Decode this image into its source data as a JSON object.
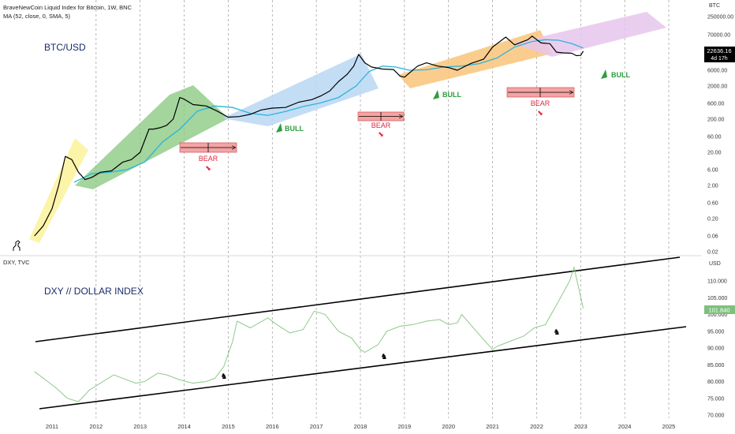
{
  "header": {
    "symbol_line": "BraveNewCoin Liquid Index for Bitcoin, 1W, BNC",
    "ma_line": "MA (52, close, 0, SMA, 5)",
    "dxy_line": "DXY, TVC"
  },
  "top_panel": {
    "title": "BTC/USD",
    "currency": "BTC"
  },
  "bottom_panel": {
    "title": "DXY // DOLLAR INDEX",
    "currency": "USD"
  },
  "price_label": {
    "value": "22636.16",
    "countdown": "4d 17h"
  },
  "dxy_label": {
    "value": "101.840"
  },
  "annotations": {
    "bull": [
      "BULL",
      "BULL",
      "BULL"
    ],
    "bear": [
      "BEAR",
      "BEAR",
      "BEAR"
    ]
  },
  "colors": {
    "price_line": "#000000",
    "ma_line": "#2bb5d8",
    "dxy_line": "#8fc98a",
    "bull_label": "#2e9e3e",
    "bear_label": "#e0283d",
    "bear_box": "#f3a3a3",
    "band_yellow": "#fbf29a",
    "band_green": "#8ccb85",
    "band_blue": "#b8d7f3",
    "band_orange": "#f9c47a",
    "band_purple": "#e6c5ec",
    "price_tag": "#000000",
    "dxy_tag": "#7fc07d"
  },
  "chart_data": [
    {
      "type": "line",
      "scale": "log",
      "title": "BTC/USD",
      "ylabel": "BTC",
      "x_ticks": [
        "2011",
        "2012",
        "2013",
        "2014",
        "2015",
        "2016",
        "2017",
        "2018",
        "2019",
        "2020",
        "2021",
        "2022",
        "2023",
        "2024",
        "2025"
      ],
      "y_ticks": [
        250000,
        70000,
        20000,
        6000,
        2000,
        600,
        200,
        60,
        20,
        6,
        2,
        0.6,
        0.2,
        0.06,
        0.02
      ],
      "y_tick_labels": [
        "250000.00",
        "70000.00",
        "20000.00",
        "6000.00",
        "2000.00",
        "600.00",
        "200.00",
        "60.00",
        "20.00",
        "6.00",
        "2.00",
        "0.60",
        "0.20",
        "0.06",
        "0.02"
      ],
      "series": [
        {
          "x": [
            2010.6,
            2010.8,
            2011.0,
            2011.15,
            2011.3,
            2011.45,
            2011.6,
            2011.75,
            2011.9,
            2012.1,
            2012.35,
            2012.6,
            2012.8,
            2013.0,
            2013.2,
            2013.3,
            2013.45,
            2013.6,
            2013.75,
            2013.9,
            2014.0,
            2014.2,
            2014.5,
            2014.75,
            2015.0,
            2015.25,
            2015.5,
            2015.75,
            2016.0,
            2016.3,
            2016.6,
            2016.9,
            2017.1,
            2017.3,
            2017.5,
            2017.7,
            2017.85,
            2017.96,
            2018.1,
            2018.25,
            2018.5,
            2018.75,
            2018.9,
            2019.0,
            2019.3,
            2019.5,
            2019.75,
            2020.0,
            2020.2,
            2020.5,
            2020.8,
            2021.0,
            2021.3,
            2021.5,
            2021.8,
            2021.9,
            2022.1,
            2022.3,
            2022.45,
            2022.6,
            2022.8,
            2022.9,
            2023.0,
            2023.06
          ],
          "y": [
            0.06,
            0.12,
            0.4,
            2,
            15,
            12,
            5,
            3,
            3.5,
            5,
            5.5,
            10,
            12,
            20,
            100,
            100,
            110,
            130,
            200,
            900,
            800,
            550,
            500,
            350,
            230,
            240,
            280,
            380,
            430,
            450,
            650,
            780,
            1000,
            1400,
            2700,
            4500,
            8000,
            18000,
            10000,
            7500,
            6500,
            6300,
            4000,
            3700,
            8000,
            10000,
            8000,
            7200,
            6000,
            9500,
            13000,
            30000,
            60000,
            35000,
            50000,
            64000,
            40000,
            38000,
            21000,
            20000,
            19500,
            16500,
            16800,
            22600
          ]
        },
        {
          "x": [
            2011.5,
            2011.9,
            2012.3,
            2012.7,
            2013.1,
            2013.5,
            2013.9,
            2014.3,
            2014.7,
            2015.1,
            2015.5,
            2015.9,
            2016.3,
            2016.7,
            2017.1,
            2017.5,
            2017.9,
            2018.2,
            2018.5,
            2018.8,
            2019.1,
            2019.5,
            2019.9,
            2020.3,
            2020.7,
            2021.1,
            2021.5,
            2021.9,
            2022.2,
            2022.5,
            2022.8,
            2023.06
          ],
          "y": [
            2.5,
            4.5,
            5,
            6,
            10,
            40,
            100,
            350,
            500,
            450,
            300,
            260,
            340,
            480,
            620,
            900,
            2000,
            5500,
            8000,
            7500,
            6000,
            6200,
            7500,
            8000,
            9500,
            14000,
            30000,
            44000,
            50000,
            48000,
            38000,
            28000
          ]
        }
      ]
    },
    {
      "type": "line",
      "title": "DXY // DOLLAR INDEX",
      "ylabel": "USD",
      "x_ticks": [
        "2011",
        "2012",
        "2013",
        "2014",
        "2015",
        "2016",
        "2017",
        "2018",
        "2019",
        "2020",
        "2021",
        "2022",
        "2023",
        "2024",
        "2025"
      ],
      "y_ticks": [
        110,
        105,
        100,
        95,
        90,
        85,
        80,
        75,
        70
      ],
      "y_tick_labels": [
        "110.000",
        "105.000",
        "100.000",
        "95.000",
        "90.000",
        "85.000",
        "80.000",
        "75.000",
        "70.000"
      ],
      "ylim": [
        70,
        115
      ],
      "series": [
        {
          "x": [
            2010.6,
            2010.9,
            2011.1,
            2011.35,
            2011.6,
            2011.85,
            2012.1,
            2012.4,
            2012.6,
            2012.9,
            2013.1,
            2013.4,
            2013.6,
            2013.9,
            2014.2,
            2014.5,
            2014.7,
            2014.9,
            2015.1,
            2015.2,
            2015.5,
            2015.9,
            2016.1,
            2016.4,
            2016.7,
            2016.95,
            2017.2,
            2017.5,
            2017.8,
            2018.0,
            2018.1,
            2018.4,
            2018.6,
            2018.9,
            2019.2,
            2019.5,
            2019.8,
            2020.0,
            2020.2,
            2020.3,
            2020.5,
            2020.8,
            2021.0,
            2021.1,
            2021.4,
            2021.7,
            2021.95,
            2022.2,
            2022.5,
            2022.75,
            2022.85,
            2023.06
          ],
          "y": [
            83,
            80,
            78,
            75,
            74,
            77.5,
            79.5,
            82,
            81,
            79.5,
            80,
            82.5,
            82,
            80.5,
            79.5,
            80,
            81,
            84.5,
            92,
            98,
            96,
            99,
            97,
            94.5,
            95.5,
            101,
            100,
            95,
            93,
            89.5,
            88.7,
            91,
            95,
            96.5,
            97,
            98,
            98.5,
            97,
            97.5,
            100,
            97,
            92.5,
            89.5,
            90.5,
            92,
            93.5,
            96,
            97,
            104,
            110,
            114,
            101.84
          ]
        }
      ]
    }
  ]
}
